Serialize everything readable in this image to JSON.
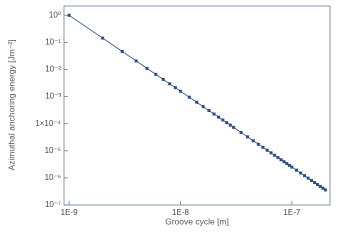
{
  "chart_data": {
    "type": "scatter",
    "log_x": true,
    "log_y": true,
    "color": "#2b4a88",
    "x_label": "Groove cycle [m]",
    "y_label": "Azimuthal anchoring energy [Jm⁻²]",
    "x": [
      1e-09,
      2e-09,
      3e-09,
      4e-09,
      5e-09,
      6e-09,
      7e-09,
      8e-09,
      9e-09,
      1e-08,
      1.2e-08,
      1.4e-08,
      1.6e-08,
      1.8e-08,
      2e-08,
      2.2e-08,
      2.4e-08,
      2.6e-08,
      2.8e-08,
      3e-08,
      3.5e-08,
      4e-08,
      4.5e-08,
      5e-08,
      5.5e-08,
      6e-08,
      6.5e-08,
      7e-08,
      7.5e-08,
      8e-08,
      8.5e-08,
      9e-08,
      9.5e-08,
      1e-07,
      1.1e-07,
      1.2e-07,
      1.3e-07,
      1.4e-07,
      1.5e-07,
      1.6e-07,
      1.7e-07,
      1.8e-07,
      1.9e-07,
      2e-07
    ],
    "values": [
      1,
      0.144,
      0.0461,
      0.0206,
      0.011,
      0.00663,
      0.00431,
      0.00296,
      0.00213,
      0.00158,
      0.00095,
      0.000618,
      0.000425,
      0.000306,
      0.000228,
      0.000174,
      0.000137,
      0.000109,
      8.87e-05,
      7.31e-05,
      4.75e-05,
      3.27e-05,
      2.35e-05,
      1.75e-05,
      1.34e-05,
      1.05e-05,
      8.39e-06,
      6.82e-06,
      5.62e-06,
      4.69e-06,
      3.96e-06,
      3.38e-06,
      2.9e-06,
      2.51e-06,
      1.92e-06,
      1.51e-06,
      1.21e-06,
      9.8e-07,
      8.07e-07,
      6.74e-07,
      5.69e-07,
      4.84e-07,
      4.16e-07,
      3.61e-07
    ],
    "xlim": [
      9e-10,
      2.2e-07
    ],
    "ylim": [
      1e-07,
      2.2
    ],
    "xticks": [
      {
        "value": 1e-09,
        "label": "1E-9"
      },
      {
        "value": 1e-08,
        "label": "1E-8"
      },
      {
        "value": 1e-07,
        "label": "1E-7"
      }
    ],
    "yticks": [
      {
        "value": 1,
        "label": "10⁰"
      },
      {
        "value": 0.1,
        "label": "10⁻¹"
      },
      {
        "value": 0.01,
        "label": "10⁻²"
      },
      {
        "value": 0.001,
        "label": "10⁻³"
      },
      {
        "value": 0.0001,
        "label": "1×10⁻⁴"
      },
      {
        "value": 1e-05,
        "label": "10⁻⁵"
      },
      {
        "value": 1e-06,
        "label": "10⁻⁶"
      },
      {
        "value": 1e-07,
        "label": "10⁻⁷"
      }
    ]
  }
}
